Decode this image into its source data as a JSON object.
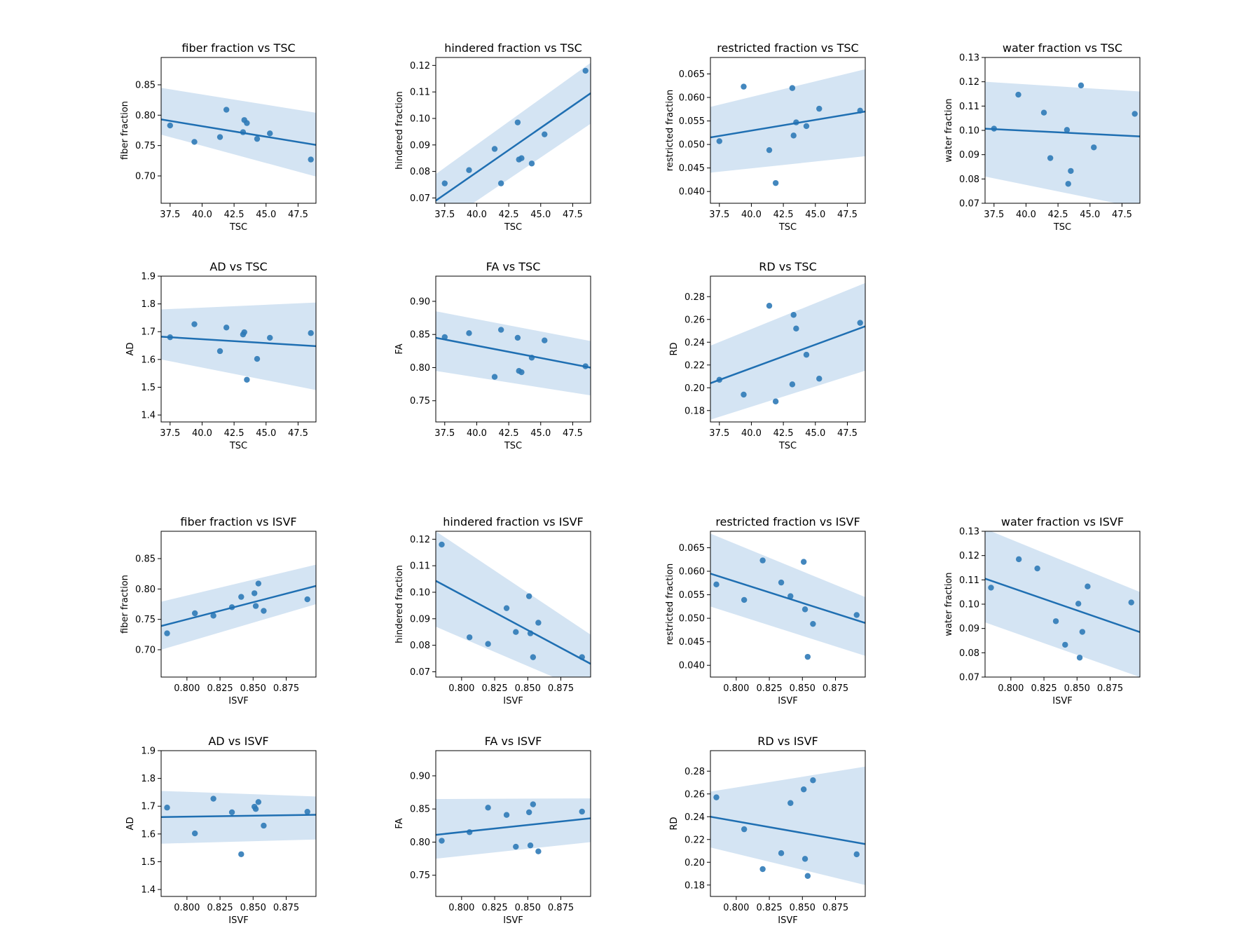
{
  "style": {
    "point_color": "#2f7ab7",
    "line_color": "#1f6fb2",
    "band_color": "#c6dbef"
  },
  "chart_data": [
    {
      "type": "scatter",
      "title": "fiber fraction vs TSC",
      "xlabel": "TSC",
      "ylabel": "fiber fraction",
      "xlim": [
        36.8,
        48.9
      ],
      "ylim": [
        0.655,
        0.895
      ],
      "xticks": [
        37.5,
        40.0,
        42.5,
        45.0,
        47.5
      ],
      "xtick_labels": [
        "37.5",
        "40.0",
        "42.5",
        "45.0",
        "47.5"
      ],
      "yticks": [
        0.7,
        0.75,
        0.8,
        0.85
      ],
      "ytick_labels": [
        "0.70",
        "0.75",
        "0.80",
        "0.85"
      ],
      "x": [
        37.5,
        39.4,
        41.4,
        41.9,
        43.2,
        43.3,
        43.5,
        44.3,
        45.3,
        48.5
      ],
      "y": [
        0.783,
        0.756,
        0.764,
        0.809,
        0.772,
        0.792,
        0.787,
        0.761,
        0.77,
        0.727
      ],
      "fit": [
        0.793,
        0.751
      ],
      "band_upper": [
        0.845,
        0.804
      ],
      "band_lower": [
        0.768,
        0.699
      ]
    },
    {
      "type": "scatter",
      "title": "hindered fraction vs TSC",
      "xlabel": "TSC",
      "ylabel": "hindered fraction",
      "xlim": [
        36.8,
        48.9
      ],
      "ylim": [
        0.068,
        0.123
      ],
      "xticks": [
        37.5,
        40.0,
        42.5,
        45.0,
        47.5
      ],
      "xtick_labels": [
        "37.5",
        "40.0",
        "42.5",
        "45.0",
        "47.5"
      ],
      "yticks": [
        0.07,
        0.08,
        0.09,
        0.1,
        0.11,
        0.12
      ],
      "ytick_labels": [
        "0.07",
        "0.08",
        "0.09",
        "0.10",
        "0.11",
        "0.12"
      ],
      "x": [
        37.5,
        39.4,
        41.4,
        41.9,
        43.2,
        43.3,
        43.5,
        44.3,
        45.3,
        48.5
      ],
      "y": [
        0.0755,
        0.0805,
        0.0885,
        0.0755,
        0.0985,
        0.0845,
        0.085,
        0.083,
        0.094,
        0.118
      ],
      "fit": [
        0.069,
        0.1095
      ],
      "band_upper": [
        0.079,
        0.121
      ],
      "band_lower": [
        0.0585,
        0.098
      ]
    },
    {
      "type": "scatter",
      "title": "restricted fraction vs TSC",
      "xlabel": "TSC",
      "ylabel": "restricted fraction",
      "xlim": [
        36.8,
        48.9
      ],
      "ylim": [
        0.0375,
        0.0685
      ],
      "xticks": [
        37.5,
        40.0,
        42.5,
        45.0,
        47.5
      ],
      "xtick_labels": [
        "37.5",
        "40.0",
        "42.5",
        "45.0",
        "47.5"
      ],
      "yticks": [
        0.04,
        0.045,
        0.05,
        0.055,
        0.06,
        0.065
      ],
      "ytick_labels": [
        "0.040",
        "0.045",
        "0.050",
        "0.055",
        "0.060",
        "0.065"
      ],
      "x": [
        37.5,
        39.4,
        41.4,
        41.9,
        43.2,
        43.3,
        43.5,
        44.3,
        45.3,
        48.5
      ],
      "y": [
        0.0507,
        0.0623,
        0.0488,
        0.0418,
        0.062,
        0.0519,
        0.0547,
        0.0539,
        0.0576,
        0.0572
      ],
      "fit": [
        0.0515,
        0.057
      ],
      "band_upper": [
        0.058,
        0.066
      ],
      "band_lower": [
        0.044,
        0.0475
      ]
    },
    {
      "type": "scatter",
      "title": "water fraction vs TSC",
      "xlabel": "TSC",
      "ylabel": "water fraction",
      "xlim": [
        36.8,
        48.9
      ],
      "ylim": [
        0.07,
        0.13
      ],
      "xticks": [
        37.5,
        40.0,
        42.5,
        45.0,
        47.5
      ],
      "xtick_labels": [
        "37.5",
        "40.0",
        "42.5",
        "45.0",
        "47.5"
      ],
      "yticks": [
        0.07,
        0.08,
        0.09,
        0.1,
        0.11,
        0.12,
        0.13
      ],
      "ytick_labels": [
        "0.07",
        "0.08",
        "0.09",
        "0.10",
        "0.11",
        "0.12",
        "0.13"
      ],
      "x": [
        37.5,
        39.4,
        41.4,
        41.9,
        43.2,
        43.3,
        43.5,
        44.3,
        45.3,
        48.5
      ],
      "y": [
        0.1007,
        0.1147,
        0.1073,
        0.0886,
        0.1002,
        0.078,
        0.0833,
        0.1185,
        0.093,
        0.1068
      ],
      "fit": [
        0.1007,
        0.0975
      ],
      "band_upper": [
        0.12,
        0.116
      ],
      "band_lower": [
        0.081,
        0.068
      ]
    },
    {
      "type": "scatter",
      "title": "AD vs TSC",
      "xlabel": "TSC",
      "ylabel": "AD",
      "xlim": [
        36.8,
        48.9
      ],
      "ylim": [
        1.375,
        1.9
      ],
      "xticks": [
        37.5,
        40.0,
        42.5,
        45.0,
        47.5
      ],
      "xtick_labels": [
        "37.5",
        "40.0",
        "42.5",
        "45.0",
        "47.5"
      ],
      "yticks": [
        1.4,
        1.5,
        1.6,
        1.7,
        1.8,
        1.9
      ],
      "ytick_labels": [
        "1.4",
        "1.5",
        "1.6",
        "1.7",
        "1.8",
        "1.9"
      ],
      "x": [
        37.5,
        39.4,
        41.4,
        41.9,
        43.2,
        43.3,
        43.5,
        44.3,
        45.3,
        48.5
      ],
      "y": [
        1.68,
        1.727,
        1.63,
        1.715,
        1.69,
        1.698,
        1.527,
        1.602,
        1.678,
        1.695
      ],
      "fit": [
        1.682,
        1.648
      ],
      "band_upper": [
        1.78,
        1.805
      ],
      "band_lower": [
        1.6,
        1.49
      ]
    },
    {
      "type": "scatter",
      "title": "FA vs TSC",
      "xlabel": "TSC",
      "ylabel": "FA",
      "xlim": [
        36.8,
        48.9
      ],
      "ylim": [
        0.718,
        0.938
      ],
      "xticks": [
        37.5,
        40.0,
        42.5,
        45.0,
        47.5
      ],
      "xtick_labels": [
        "37.5",
        "40.0",
        "42.5",
        "45.0",
        "47.5"
      ],
      "yticks": [
        0.75,
        0.8,
        0.85,
        0.9
      ],
      "ytick_labels": [
        "0.75",
        "0.80",
        "0.85",
        "0.90"
      ],
      "x": [
        37.5,
        39.4,
        41.4,
        41.9,
        43.2,
        43.3,
        43.5,
        44.3,
        45.3,
        48.5
      ],
      "y": [
        0.846,
        0.852,
        0.786,
        0.857,
        0.845,
        0.795,
        0.793,
        0.815,
        0.841,
        0.802
      ],
      "fit": [
        0.845,
        0.8
      ],
      "band_upper": [
        0.885,
        0.84
      ],
      "band_lower": [
        0.795,
        0.758
      ]
    },
    {
      "type": "scatter",
      "title": "RD vs TSC",
      "xlabel": "TSC",
      "ylabel": "RD",
      "xlim": [
        36.8,
        48.9
      ],
      "ylim": [
        0.17,
        0.298
      ],
      "xticks": [
        37.5,
        40.0,
        42.5,
        45.0,
        47.5
      ],
      "xtick_labels": [
        "37.5",
        "40.0",
        "42.5",
        "45.0",
        "47.5"
      ],
      "yticks": [
        0.18,
        0.2,
        0.22,
        0.24,
        0.26,
        0.28
      ],
      "ytick_labels": [
        "0.18",
        "0.20",
        "0.22",
        "0.24",
        "0.26",
        "0.28"
      ],
      "x": [
        37.5,
        39.4,
        41.4,
        41.9,
        43.2,
        43.3,
        43.5,
        44.3,
        45.3,
        48.5
      ],
      "y": [
        0.207,
        0.194,
        0.272,
        0.188,
        0.203,
        0.264,
        0.252,
        0.229,
        0.208,
        0.257
      ],
      "fit": [
        0.204,
        0.254
      ],
      "band_upper": [
        0.237,
        0.292
      ],
      "band_lower": [
        0.172,
        0.215
      ]
    },
    {
      "type": "scatter",
      "title": "fiber fraction vs ISVF",
      "xlabel": "ISVF",
      "ylabel": "fiber fraction",
      "xlim": [
        0.7805,
        0.8975
      ],
      "ylim": [
        0.655,
        0.895
      ],
      "xticks": [
        0.8,
        0.825,
        0.85,
        0.875
      ],
      "xtick_labels": [
        "0.800",
        "0.825",
        "0.850",
        "0.875"
      ],
      "yticks": [
        0.7,
        0.75,
        0.8,
        0.85
      ],
      "ytick_labels": [
        "0.70",
        "0.75",
        "0.80",
        "0.85"
      ],
      "x": [
        0.785,
        0.806,
        0.82,
        0.834,
        0.841,
        0.851,
        0.852,
        0.854,
        0.858,
        0.891
      ],
      "y": [
        0.727,
        0.76,
        0.756,
        0.77,
        0.787,
        0.793,
        0.772,
        0.809,
        0.764,
        0.783
      ],
      "fit": [
        0.739,
        0.805
      ],
      "band_upper": [
        0.779,
        0.84
      ],
      "band_lower": [
        0.7,
        0.775
      ]
    },
    {
      "type": "scatter",
      "title": "hindered fraction vs ISVF",
      "xlabel": "ISVF",
      "ylabel": "hindered fraction",
      "xlim": [
        0.7805,
        0.8975
      ],
      "ylim": [
        0.068,
        0.123
      ],
      "xticks": [
        0.8,
        0.825,
        0.85,
        0.875
      ],
      "xtick_labels": [
        "0.800",
        "0.825",
        "0.850",
        "0.875"
      ],
      "yticks": [
        0.07,
        0.08,
        0.09,
        0.1,
        0.11,
        0.12
      ],
      "ytick_labels": [
        "0.07",
        "0.08",
        "0.09",
        "0.10",
        "0.11",
        "0.12"
      ],
      "x": [
        0.785,
        0.806,
        0.82,
        0.834,
        0.841,
        0.851,
        0.852,
        0.854,
        0.858,
        0.891
      ],
      "y": [
        0.118,
        0.083,
        0.0805,
        0.094,
        0.085,
        0.0985,
        0.0845,
        0.0755,
        0.0885,
        0.0755
      ],
      "fit": [
        0.1043,
        0.073
      ],
      "band_upper": [
        0.123,
        0.084
      ],
      "band_lower": [
        0.087,
        0.062
      ]
    },
    {
      "type": "scatter",
      "title": "restricted fraction vs ISVF",
      "xlabel": "ISVF",
      "ylabel": "restricted fraction",
      "xlim": [
        0.7805,
        0.8975
      ],
      "ylim": [
        0.0375,
        0.0685
      ],
      "xticks": [
        0.8,
        0.825,
        0.85,
        0.875
      ],
      "xtick_labels": [
        "0.800",
        "0.825",
        "0.850",
        "0.875"
      ],
      "yticks": [
        0.04,
        0.045,
        0.05,
        0.055,
        0.06,
        0.065
      ],
      "ytick_labels": [
        "0.040",
        "0.045",
        "0.050",
        "0.055",
        "0.060",
        "0.065"
      ],
      "x": [
        0.785,
        0.806,
        0.82,
        0.834,
        0.841,
        0.851,
        0.852,
        0.854,
        0.858,
        0.891
      ],
      "y": [
        0.0572,
        0.0539,
        0.0623,
        0.0576,
        0.0547,
        0.062,
        0.0519,
        0.0418,
        0.0488,
        0.0507
      ],
      "fit": [
        0.0595,
        0.049
      ],
      "band_upper": [
        0.068,
        0.0545
      ],
      "band_lower": [
        0.0525,
        0.042
      ]
    },
    {
      "type": "scatter",
      "title": "water fraction vs ISVF",
      "xlabel": "ISVF",
      "ylabel": "water fraction",
      "xlim": [
        0.7805,
        0.8975
      ],
      "ylim": [
        0.07,
        0.13
      ],
      "xticks": [
        0.8,
        0.825,
        0.85,
        0.875
      ],
      "xtick_labels": [
        "0.800",
        "0.825",
        "0.850",
        "0.875"
      ],
      "yticks": [
        0.07,
        0.08,
        0.09,
        0.1,
        0.11,
        0.12,
        0.13
      ],
      "ytick_labels": [
        "0.07",
        "0.08",
        "0.09",
        "0.10",
        "0.11",
        "0.12",
        "0.13"
      ],
      "x": [
        0.785,
        0.806,
        0.82,
        0.834,
        0.841,
        0.851,
        0.852,
        0.854,
        0.858,
        0.891
      ],
      "y": [
        0.1068,
        0.1185,
        0.1147,
        0.093,
        0.0833,
        0.1002,
        0.078,
        0.0886,
        0.1073,
        0.1007
      ],
      "fit": [
        0.1105,
        0.0885
      ],
      "band_upper": [
        0.131,
        0.105
      ],
      "band_lower": [
        0.0925,
        0.07
      ]
    },
    {
      "type": "scatter",
      "title": "AD vs ISVF",
      "xlabel": "ISVF",
      "ylabel": "AD",
      "xlim": [
        0.7805,
        0.8975
      ],
      "ylim": [
        1.375,
        1.9
      ],
      "xticks": [
        0.8,
        0.825,
        0.85,
        0.875
      ],
      "xtick_labels": [
        "0.800",
        "0.825",
        "0.850",
        "0.875"
      ],
      "yticks": [
        1.4,
        1.5,
        1.6,
        1.7,
        1.8,
        1.9
      ],
      "ytick_labels": [
        "1.4",
        "1.5",
        "1.6",
        "1.7",
        "1.8",
        "1.9"
      ],
      "x": [
        0.785,
        0.806,
        0.82,
        0.834,
        0.841,
        0.851,
        0.852,
        0.854,
        0.858,
        0.891
      ],
      "y": [
        1.695,
        1.602,
        1.727,
        1.678,
        1.527,
        1.698,
        1.69,
        1.715,
        1.63,
        1.68
      ],
      "fit": [
        1.661,
        1.669
      ],
      "band_upper": [
        1.755,
        1.735
      ],
      "band_lower": [
        1.565,
        1.58
      ]
    },
    {
      "type": "scatter",
      "title": "FA vs ISVF",
      "xlabel": "ISVF",
      "ylabel": "FA",
      "xlim": [
        0.7805,
        0.8975
      ],
      "ylim": [
        0.718,
        0.938
      ],
      "xticks": [
        0.8,
        0.825,
        0.85,
        0.875
      ],
      "xtick_labels": [
        "0.800",
        "0.825",
        "0.850",
        "0.875"
      ],
      "yticks": [
        0.75,
        0.8,
        0.85,
        0.9
      ],
      "ytick_labels": [
        "0.75",
        "0.80",
        "0.85",
        "0.90"
      ],
      "x": [
        0.785,
        0.806,
        0.82,
        0.834,
        0.841,
        0.851,
        0.852,
        0.854,
        0.858,
        0.891
      ],
      "y": [
        0.802,
        0.815,
        0.852,
        0.841,
        0.793,
        0.845,
        0.795,
        0.857,
        0.786,
        0.846
      ],
      "fit": [
        0.811,
        0.836
      ],
      "band_upper": [
        0.865,
        0.866
      ],
      "band_lower": [
        0.775,
        0.8
      ]
    },
    {
      "type": "scatter",
      "title": "RD vs ISVF",
      "xlabel": "ISVF",
      "ylabel": "RD",
      "xlim": [
        0.7805,
        0.8975
      ],
      "ylim": [
        0.17,
        0.298
      ],
      "xticks": [
        0.8,
        0.825,
        0.85,
        0.875
      ],
      "xtick_labels": [
        "0.800",
        "0.825",
        "0.850",
        "0.875"
      ],
      "yticks": [
        0.18,
        0.2,
        0.22,
        0.24,
        0.26,
        0.28
      ],
      "ytick_labels": [
        "0.18",
        "0.20",
        "0.22",
        "0.24",
        "0.26",
        "0.28"
      ],
      "x": [
        0.785,
        0.806,
        0.82,
        0.834,
        0.841,
        0.851,
        0.852,
        0.854,
        0.858,
        0.891
      ],
      "y": [
        0.257,
        0.229,
        0.194,
        0.208,
        0.252,
        0.264,
        0.203,
        0.188,
        0.272,
        0.207
      ],
      "fit": [
        0.24,
        0.216
      ],
      "band_upper": [
        0.262,
        0.284
      ],
      "band_lower": [
        0.213,
        0.18
      ]
    }
  ]
}
